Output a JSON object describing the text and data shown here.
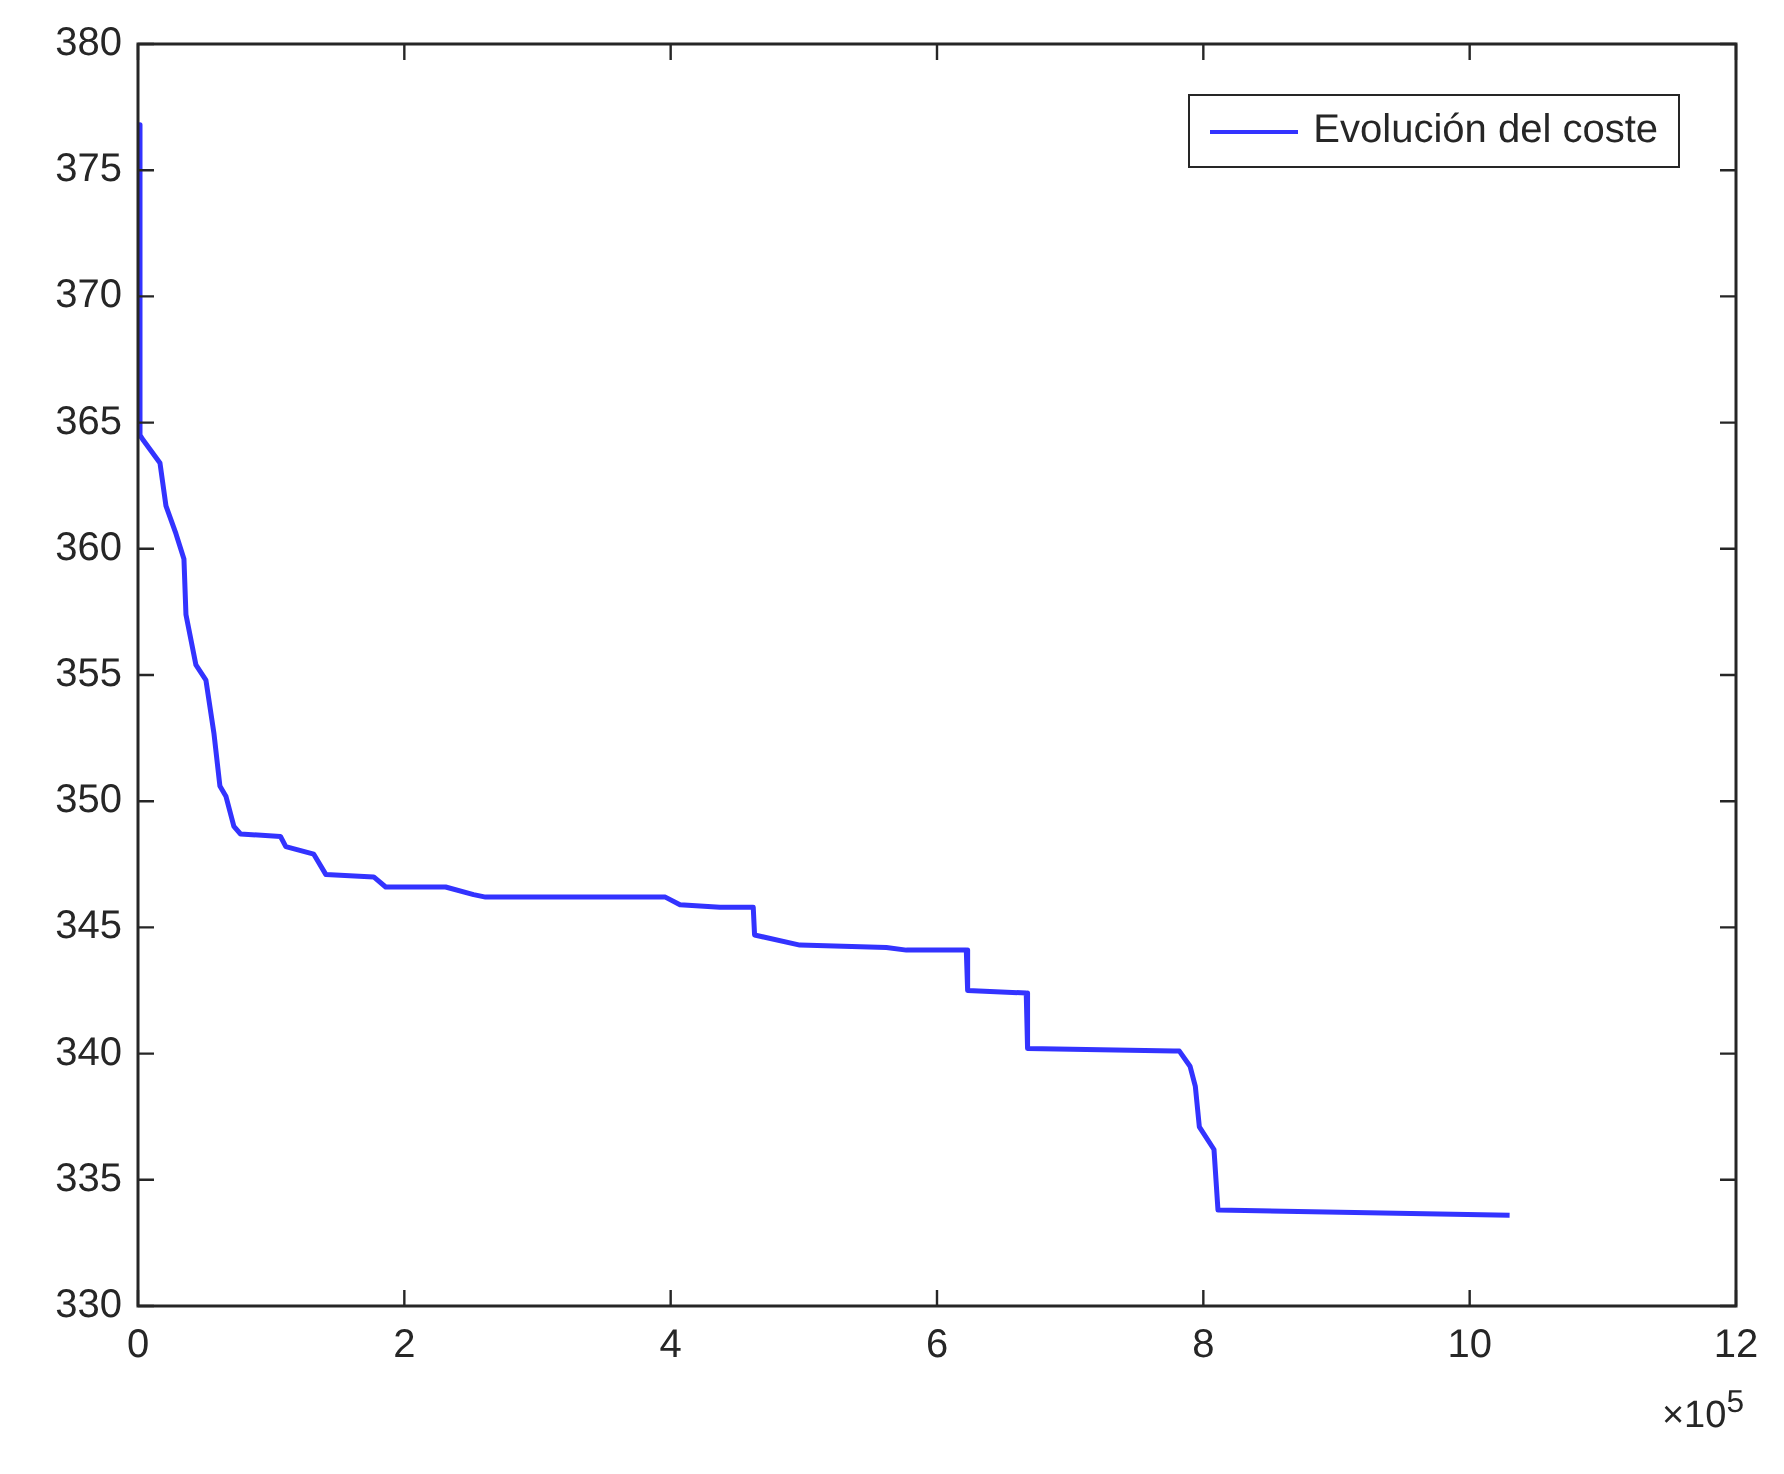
{
  "chart_data": {
    "type": "line",
    "x": [
      0,
      0.015,
      0.04,
      0.165,
      0.21,
      0.285,
      0.345,
      0.36,
      0.435,
      0.51,
      0.57,
      0.615,
      0.66,
      0.72,
      0.77,
      1.07,
      1.11,
      1.32,
      1.41,
      1.77,
      1.86,
      2.31,
      2.52,
      2.61,
      3.96,
      4.07,
      4.37,
      4.62,
      4.63,
      4.97,
      5.62,
      5.77,
      6.22,
      6.23,
      6.67,
      6.68,
      7.78,
      7.82,
      7.9,
      7.94,
      7.97,
      8.08,
      8.11,
      10.3
    ],
    "series": [
      {
        "name": "Evolución del coste",
        "color": "#3333ff",
        "values": [
          376.8,
          364.5,
          364.3,
          363.4,
          361.7,
          360.6,
          359.6,
          357.4,
          355.4,
          354.8,
          352.7,
          350.6,
          350.2,
          349.0,
          348.7,
          348.6,
          348.2,
          347.9,
          347.1,
          347.0,
          346.6,
          346.6,
          346.3,
          346.2,
          346.2,
          345.9,
          345.8,
          345.8,
          344.7,
          344.3,
          344.2,
          344.1,
          344.1,
          342.5,
          342.4,
          340.2,
          340.1,
          340.1,
          339.5,
          338.7,
          337.1,
          336.2,
          333.8,
          333.6
        ]
      }
    ],
    "xlim": [
      0,
      12
    ],
    "xticks": [
      0,
      2,
      4,
      6,
      8,
      10,
      12
    ],
    "ylim": [
      330,
      380
    ],
    "yticks": [
      330,
      335,
      340,
      345,
      350,
      355,
      360,
      365,
      370,
      375,
      380
    ],
    "annotations": [
      "×10$^{5}$"
    ],
    "grid": false,
    "legend": "top right",
    "marker": "none",
    "line_style": "solid"
  }
}
